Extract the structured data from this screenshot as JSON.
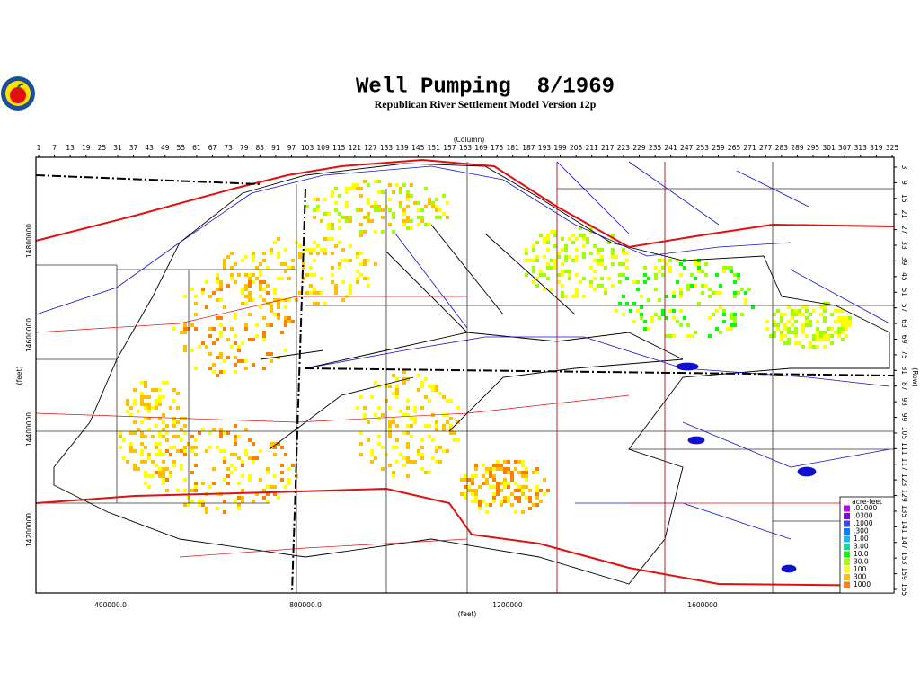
{
  "header": {
    "title": "Well Pumping  8/1969",
    "subtitle": "Republican River Settlement Model Version 12p"
  },
  "axes": {
    "column_title": "(Column)",
    "row_title": "(Row)",
    "x_title": "(feet)",
    "y_title": "(feet)",
    "column_ticks": [
      1,
      7,
      13,
      19,
      25,
      31,
      37,
      43,
      49,
      55,
      61,
      67,
      73,
      79,
      85,
      91,
      97,
      103,
      109,
      115,
      121,
      127,
      133,
      139,
      145,
      151,
      157,
      163,
      169,
      175,
      181,
      187,
      193,
      199,
      205,
      211,
      217,
      223,
      229,
      235,
      241,
      247,
      253,
      259,
      265,
      271,
      277,
      283,
      289,
      295,
      301,
      307,
      313,
      319,
      325
    ],
    "row_ticks": [
      3,
      9,
      15,
      21,
      27,
      33,
      39,
      45,
      51,
      57,
      63,
      69,
      75,
      81,
      87,
      93,
      99,
      105,
      111,
      117,
      123,
      129,
      135,
      141,
      147,
      153,
      159,
      165
    ],
    "x_ticks": [
      "400000.0",
      "800000.0",
      "1200000",
      "1600000"
    ],
    "y_ticks": [
      "14800000",
      "14600000",
      "14400000",
      "14200000"
    ]
  },
  "legend": {
    "title": "acre-feet",
    "items": [
      {
        "label": ".01000",
        "color": "#c000ff"
      },
      {
        "label": ".0300",
        "color": "#8000ff"
      },
      {
        "label": ".1000",
        "color": "#4040ff"
      },
      {
        "label": ".300",
        "color": "#0080ff"
      },
      {
        "label": "1.00",
        "color": "#00c0ff"
      },
      {
        "label": "3.00",
        "color": "#00e0a0"
      },
      {
        "label": "10.0",
        "color": "#00ff00"
      },
      {
        "label": "30.0",
        "color": "#a0ff00"
      },
      {
        "label": "100",
        "color": "#ffff00"
      },
      {
        "label": "300",
        "color": "#ffc000"
      },
      {
        "label": "1000",
        "color": "#ff8000"
      }
    ]
  }
}
